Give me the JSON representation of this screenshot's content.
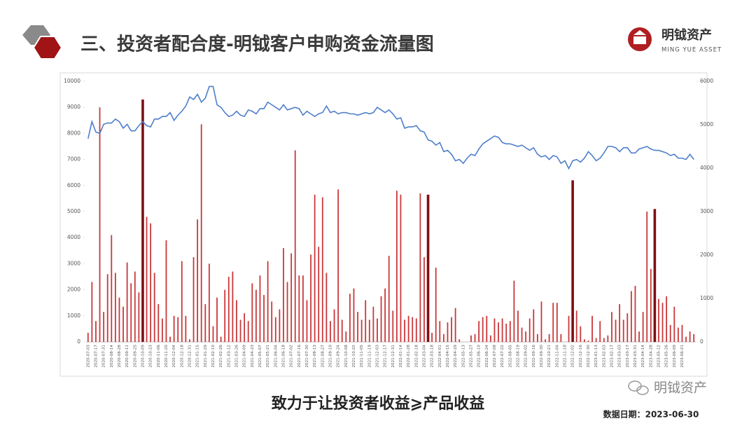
{
  "header": {
    "title": "三、投资者配合度-明钺客户申购资金流量图",
    "brand": "明钺资产",
    "brand_en": "MING YUE ASSET"
  },
  "chart_data": {
    "type": "bar",
    "categories": [
      "2020-07-03",
      null,
      "2020-07-17",
      null,
      "2020-07-31",
      null,
      "2020-08-14",
      null,
      "2020-08-28",
      null,
      "2020-09-11",
      null,
      "2020-09-25",
      null,
      "2020-10-09",
      null,
      "2020-10-23",
      null,
      "2020-11-06",
      null,
      "2020-11-20",
      null,
      "2020-12-04",
      null,
      "2020-12-18",
      null,
      "2020-12-31",
      null,
      "2021-01-15",
      null,
      "2021-01-29",
      null,
      "2021-02-10",
      null,
      "2021-02-26",
      null,
      "2021-03-12",
      null,
      "2021-03-26",
      null,
      "2021-04-09",
      null,
      "2021-04-23",
      null,
      "2021-05-07",
      null,
      "2021-05-21",
      null,
      "2021-06-04",
      null,
      "2021-06-18",
      null,
      "2021-07-02",
      null,
      "2021-07-16",
      null,
      "2021-07-30",
      null,
      "2021-08-13",
      null,
      "2021-08-27",
      null,
      "2021-09-10",
      null,
      "2021-09-24",
      null,
      "2021-10-08",
      null,
      "2021-10-22",
      null,
      "2021-11-05",
      null,
      "2021-11-19",
      null,
      "2021-12-03",
      null,
      "2021-12-17",
      null,
      "2021-12-31",
      null,
      "2022-01-14",
      null,
      "2022-01-28",
      null,
      "2022-02-18",
      null,
      "2022-03-04",
      null,
      "2022-03-18",
      null,
      "2022-04-01",
      null,
      "2022-04-15",
      null,
      "2022-04-29",
      null,
      "2022-05-13",
      null,
      "2022-05-27",
      null,
      "2022-06-10",
      null,
      "2022-06-24",
      null,
      "2022-07-08",
      null,
      "2022-07-22",
      null,
      "2022-08-05",
      null,
      "2022-08-19",
      null,
      "2022-09-02",
      null,
      "2022-09-16",
      null,
      "2022-09-30",
      null,
      "2022-10-21",
      null,
      "2022-11-04",
      null,
      "2022-11-18",
      null,
      "2022-12-02",
      null,
      "2022-12-16",
      null,
      "2022-12-30",
      null,
      "2023-01-13",
      null,
      "2023-02-03",
      null,
      "2023-02-17",
      null,
      "2023-03-03",
      null,
      "2023-03-17",
      null,
      "2023-03-31",
      null,
      "2023-04-14",
      null,
      "2023-04-28",
      null,
      "2023-05-12",
      null,
      "2023-05-26",
      null,
      "2023-06-09",
      null,
      "2023-06-21",
      null,
      null,
      null
    ],
    "series": [
      {
        "type": "bar",
        "color": "#c9383a",
        "values": [
          350,
          2300,
          800,
          9000,
          1150,
          2600,
          4100,
          2650,
          1700,
          1350,
          3050,
          2250,
          2700,
          1900,
          null,
          4800,
          4550,
          2650,
          1450,
          900,
          3900,
          200,
          1000,
          950,
          3100,
          1000,
          100,
          3250,
          4700,
          8350,
          1450,
          3000,
          600,
          1700,
          200,
          2000,
          2500,
          2700,
          1600,
          850,
          1100,
          800,
          2250,
          2000,
          2550,
          1800,
          3100,
          1550,
          950,
          1250,
          3600,
          2300,
          3400,
          7350,
          2550,
          2550,
          1600,
          3350,
          5650,
          3650,
          5550,
          2650,
          800,
          1250,
          5850,
          850,
          400,
          1850,
          2050,
          1150,
          850,
          1600,
          850,
          1350,
          900,
          1750,
          2050,
          3300,
          1200,
          5800,
          5650,
          850,
          1000,
          950,
          900,
          5700,
          3250,
          null,
          350,
          2850,
          800,
          300,
          750,
          950,
          1300,
          100,
          0,
          0,
          250,
          300,
          800,
          950,
          1000,
          250,
          900,
          750,
          900,
          700,
          800,
          2350,
          1200,
          550,
          400,
          900,
          1250,
          300,
          1550,
          100,
          300,
          1500,
          1500,
          300,
          0,
          1000,
          null,
          1200,
          600,
          100,
          50,
          1000,
          150,
          800,
          150,
          250,
          1150,
          850,
          1450,
          850,
          1100,
          1950,
          2150,
          400,
          1150,
          5000,
          2800,
          null,
          1650,
          1500,
          1750,
          650,
          1350,
          550,
          650,
          200,
          400,
          300
        ]
      },
      {
        "type": "bar",
        "color": "#7e0f12",
        "values": [
          null,
          null,
          null,
          null,
          null,
          null,
          null,
          null,
          null,
          null,
          null,
          null,
          null,
          null,
          9300,
          null,
          null,
          null,
          null,
          null,
          null,
          null,
          null,
          null,
          null,
          null,
          null,
          null,
          null,
          null,
          null,
          null,
          null,
          null,
          null,
          null,
          null,
          null,
          null,
          null,
          null,
          null,
          null,
          null,
          null,
          null,
          null,
          null,
          null,
          null,
          null,
          null,
          null,
          null,
          null,
          null,
          null,
          null,
          null,
          null,
          null,
          null,
          null,
          null,
          null,
          null,
          null,
          null,
          null,
          null,
          null,
          null,
          null,
          null,
          null,
          null,
          null,
          null,
          null,
          null,
          null,
          null,
          null,
          null,
          null,
          null,
          null,
          5650,
          null,
          null,
          null,
          null,
          null,
          null,
          null,
          null,
          null,
          null,
          null,
          null,
          null,
          null,
          null,
          null,
          null,
          null,
          null,
          null,
          null,
          null,
          null,
          null,
          null,
          null,
          null,
          null,
          null,
          null,
          null,
          null,
          null,
          null,
          null,
          null,
          6200,
          null,
          null,
          null,
          null,
          null,
          null,
          null,
          null,
          null,
          null,
          null,
          null,
          null,
          null,
          null,
          null,
          null,
          null,
          null,
          null,
          5100,
          null,
          null,
          null,
          null,
          null,
          null,
          null,
          null,
          null,
          null
        ]
      },
      {
        "type": "line",
        "axis": "y2",
        "color": "#4f7fcb",
        "values": [
          4680,
          5070,
          4830,
          4800,
          5010,
          5040,
          5040,
          5130,
          5070,
          4920,
          5010,
          4860,
          4860,
          4980,
          5070,
          4980,
          4950,
          5130,
          5130,
          5190,
          5190,
          5280,
          5100,
          5220,
          5310,
          5430,
          5640,
          5580,
          5700,
          5520,
          5610,
          5880,
          5880,
          5460,
          5400,
          5280,
          5190,
          5220,
          5310,
          5220,
          5190,
          5340,
          5310,
          5250,
          5370,
          5370,
          5520,
          5460,
          5400,
          5340,
          5460,
          5340,
          5370,
          5400,
          5370,
          5220,
          5310,
          5250,
          5190,
          5250,
          5280,
          5430,
          5280,
          5310,
          5250,
          5280,
          5280,
          5250,
          5250,
          5220,
          5250,
          5280,
          5250,
          5280,
          5400,
          5340,
          5280,
          5340,
          5250,
          5130,
          5160,
          4920,
          4950,
          4950,
          4980,
          4860,
          4830,
          4650,
          4620,
          4530,
          4590,
          4380,
          4410,
          4320,
          4170,
          4200,
          4110,
          4230,
          4320,
          4290,
          4440,
          4560,
          4620,
          4680,
          4740,
          4710,
          4590,
          4560,
          4560,
          4530,
          4500,
          4530,
          4470,
          4410,
          4470,
          4320,
          4260,
          4290,
          4200,
          4290,
          4260,
          4110,
          4170,
          3990,
          4170,
          4200,
          4140,
          4230,
          4380,
          4290,
          4170,
          4230,
          4350,
          4500,
          4500,
          4470,
          4380,
          4470,
          4470,
          4350,
          4350,
          4440,
          4470,
          4500,
          4440,
          4410,
          4410,
          4380,
          4350,
          4290,
          4320,
          4230,
          4230,
          4200,
          4320,
          4200
        ]
      }
    ],
    "ylim": [
      0,
      10000
    ],
    "yticks": [
      0,
      1000,
      2000,
      3000,
      4000,
      5000,
      6000,
      7000,
      8000,
      9000,
      10000
    ],
    "y2lim": [
      0,
      6000
    ],
    "y2ticks": [
      0,
      1000,
      2000,
      3000,
      4000,
      5000,
      6000
    ],
    "grid": false
  },
  "footer": {
    "slogan": "致力于让投资者收益⩾产品收益",
    "date": "数据日期：2023-06-30",
    "watermark": "明钺资产"
  }
}
